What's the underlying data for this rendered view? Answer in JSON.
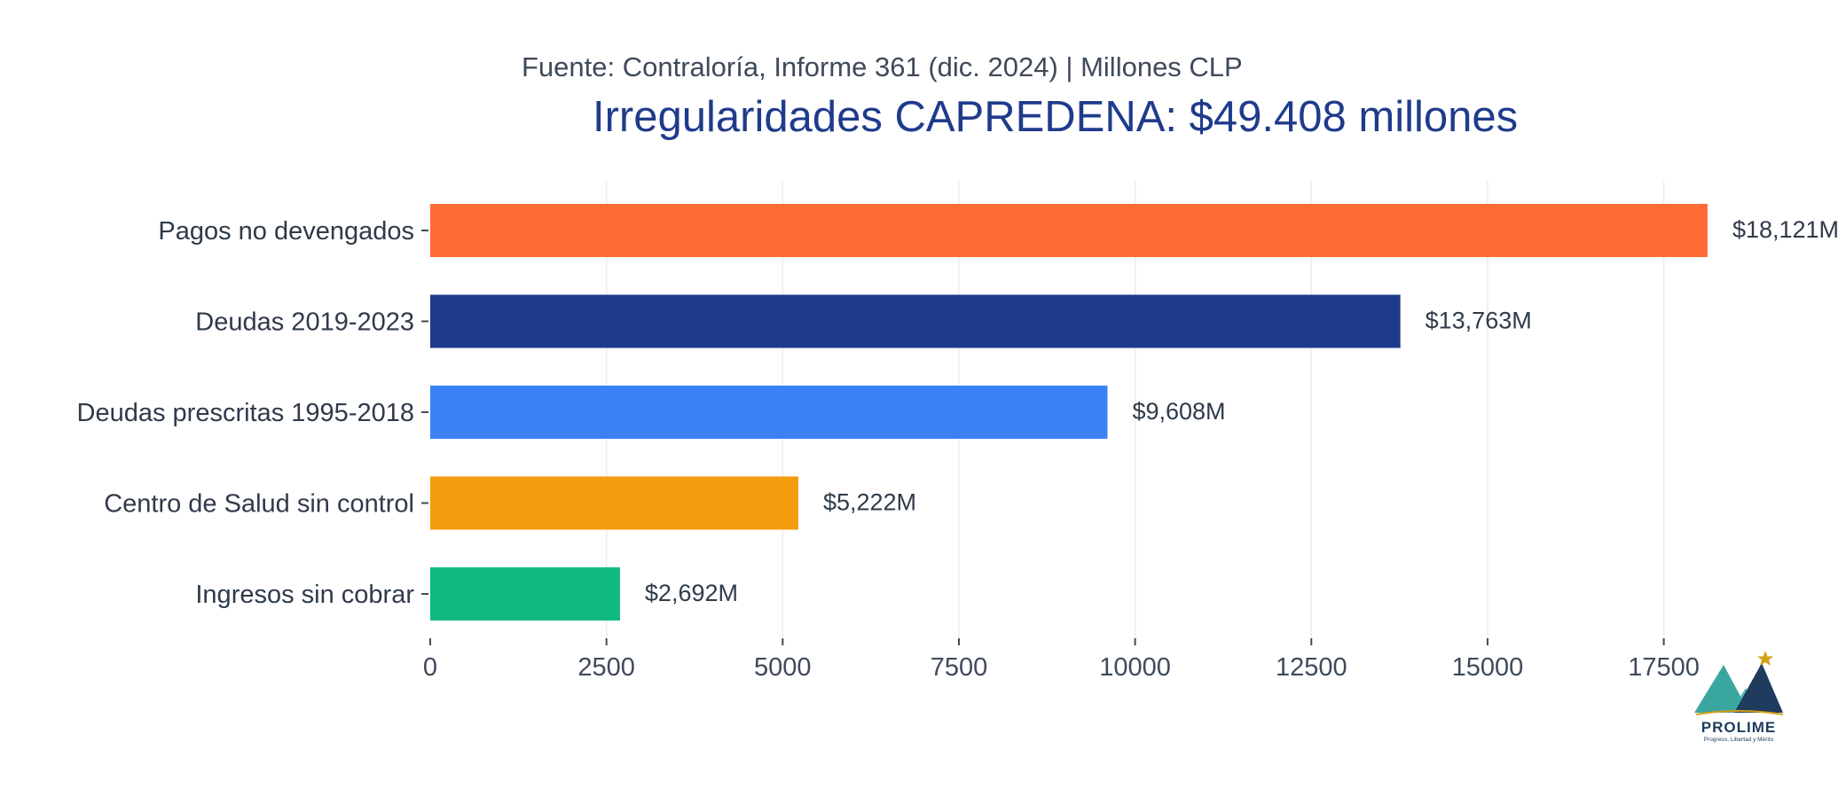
{
  "chart_data": {
    "type": "bar",
    "orientation": "horizontal",
    "subtitle": "Fuente: Contraloría, Informe 361 (dic. 2024) | Millones CLP",
    "title": "Irregularidades CAPREDENA: $49.408 millones",
    "xlabel": "",
    "ylabel": "",
    "xlim": [
      0,
      18600
    ],
    "xticks": [
      0,
      2500,
      5000,
      7500,
      10000,
      12500,
      15000,
      17500
    ],
    "grid": true,
    "categories": [
      "Pagos no devengados",
      "Deudas 2019-2023",
      "Deudas prescritas 1995-2018",
      "Centro de Salud sin control",
      "Ingresos sin cobrar"
    ],
    "values": [
      18121,
      13763,
      9608,
      5222,
      2692
    ],
    "value_labels": [
      "$18,121M",
      "$13,763M",
      "$9,608M",
      "$5,222M",
      "$2,692M"
    ],
    "colors": [
      "#ff6b35",
      "#1e3a8a",
      "#3b82f6",
      "#f39c0f",
      "#10b981"
    ]
  },
  "logo": {
    "name": "PROLIME",
    "tagline": "Progreso, Libertad y Mérito",
    "colors": {
      "teal": "#3aa6a0",
      "navy": "#1f3b5e",
      "star": "#d4a017"
    }
  }
}
